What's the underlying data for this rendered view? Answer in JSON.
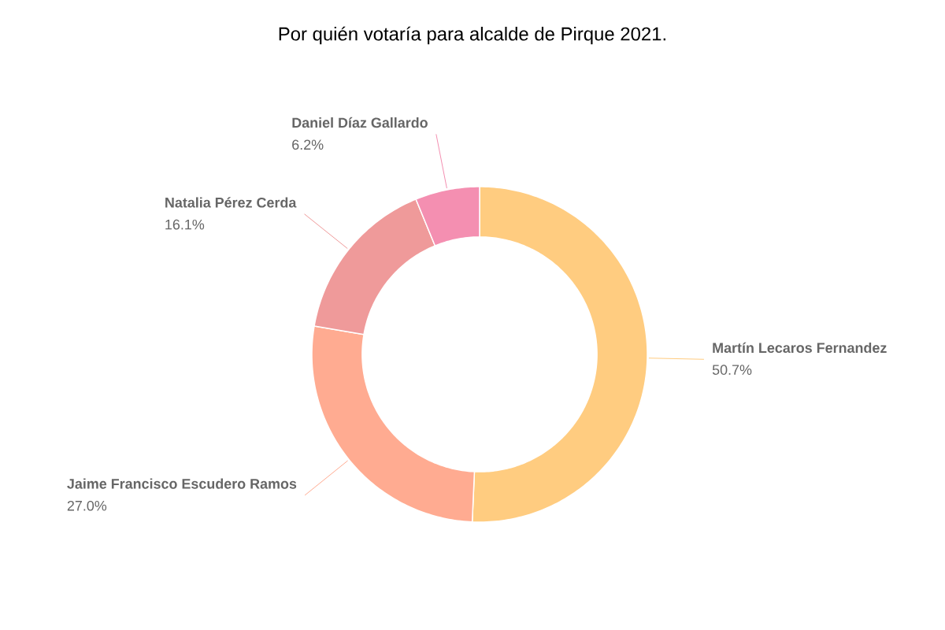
{
  "chart_data": {
    "type": "donut",
    "title": "Por quién votaría para alcalde de Pirque 2021.",
    "categories": [
      "Martín Lecaros Fernandez",
      "Jaime Francisco Escudero Ramos",
      "Natalia Pérez Cerda",
      "Daniel Díaz Gallardo"
    ],
    "values": [
      50.7,
      27.0,
      16.1,
      6.2
    ],
    "value_labels": [
      "50.7%",
      "27.0%",
      "16.1%",
      "6.2%"
    ],
    "colors": [
      "#ffcc80",
      "#ffab91",
      "#ef9a9a",
      "#f48fb1"
    ]
  }
}
